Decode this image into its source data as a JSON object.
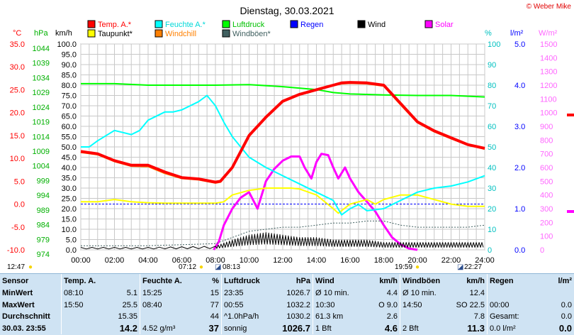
{
  "title": "Dienstag, 30.03.2021",
  "copyright": "© Weber Mike",
  "legend": [
    {
      "label": "Temp. A.*",
      "color": "#ff0000"
    },
    {
      "label": "Feuchte A.*",
      "color": "#00ffff"
    },
    {
      "label": "Luftdruck",
      "color": "#00ff00"
    },
    {
      "label": "Regen",
      "color": "#0000ff"
    },
    {
      "label": "Wind",
      "color": "#000000"
    },
    {
      "label": "Solar",
      "color": "#ff00ff"
    },
    {
      "label": "Taupunkt*",
      "color": "#ffff00"
    },
    {
      "label": "Windchill",
      "color": "#ff8000"
    },
    {
      "label": "Windböen*",
      "color": "#406060"
    }
  ],
  "axis_titles": {
    "temp": "°C",
    "pressure": "hPa",
    "wind": "km/h",
    "humidity": "%",
    "rain": "l/m²",
    "solar": "W/m²"
  },
  "chart_data": {
    "type": "line",
    "x_ticks": [
      "00:00",
      "02:00",
      "04:00",
      "06:00",
      "08:00",
      "10:00",
      "12:00",
      "14:00",
      "16:00",
      "18:00",
      "20:00",
      "22:00",
      "24:00"
    ],
    "temp_ticks": [
      "35.0",
      "30.0",
      "25.0",
      "20.0",
      "15.0",
      "10.0",
      "5.0",
      "0.0",
      "-5.0",
      "-10.0"
    ],
    "pressure_ticks": [
      "1044",
      "1039",
      "1034",
      "1029",
      "1024",
      "1019",
      "1014",
      "1009",
      "1004",
      "999",
      "994",
      "989",
      "984",
      "979",
      "974"
    ],
    "wind_ticks": [
      "100.0",
      "95.0",
      "90.0",
      "85.0",
      "80.0",
      "75.0",
      "70.0",
      "65.0",
      "60.0",
      "55.0",
      "50.0",
      "45.0",
      "40.0",
      "35.0",
      "30.0",
      "25.0",
      "20.0",
      "15.0",
      "10.0",
      "5.0",
      "0.0"
    ],
    "humidity_ticks": [
      "100",
      "90",
      "80",
      "70",
      "60",
      "50",
      "40",
      "30",
      "20",
      "10",
      "0"
    ],
    "rain_ticks": [
      "5.0",
      "4.0",
      "3.0",
      "2.0",
      "1.0",
      "0.0"
    ],
    "solar_ticks": [
      "1500",
      "1400",
      "1300",
      "1200",
      "1100",
      "1000",
      "900",
      "800",
      "700",
      "600",
      "500",
      "400",
      "300",
      "200",
      "100",
      "0"
    ],
    "temp_range": [
      -10,
      35
    ],
    "humidity_range": [
      0,
      100
    ],
    "pressure_range": [
      974,
      1044
    ],
    "wind_range": [
      0,
      100
    ],
    "solar_range": [
      0,
      1500
    ],
    "series": [
      {
        "name": "Temp. A.*",
        "axis": "temp",
        "color": "#ff0000",
        "x": [
          0,
          1,
          2,
          3,
          4,
          5,
          6,
          7,
          8,
          8.3,
          9,
          10,
          11,
          12,
          13,
          14,
          15,
          15.5,
          16,
          17,
          18,
          19,
          20,
          21,
          22,
          23,
          24
        ],
        "y": [
          11.5,
          11,
          9.5,
          8.5,
          8.5,
          7,
          5.8,
          5.5,
          4.8,
          5,
          8,
          15,
          19,
          22.5,
          24,
          25,
          26,
          26.5,
          26.6,
          26.5,
          26,
          22,
          18,
          16,
          14.5,
          13,
          12.2
        ]
      },
      {
        "name": "Windchill",
        "axis": "temp",
        "color": "#ff8000",
        "x": [
          0,
          1,
          2,
          3,
          4,
          5,
          6,
          7,
          8,
          8.3,
          9,
          10,
          11,
          12,
          13,
          14,
          15,
          15.5,
          16,
          17,
          18,
          19,
          20,
          21,
          22,
          23,
          24
        ],
        "y": [
          11.3,
          10.8,
          9.3,
          8.3,
          8.2,
          6.7,
          5.6,
          5.3,
          4.6,
          4.8,
          7.8,
          14.8,
          19,
          22.3,
          24,
          25,
          26,
          26.3,
          26.4,
          26.3,
          25.8,
          21.7,
          17.8,
          15.8,
          14.3,
          12.9,
          12
        ]
      },
      {
        "name": "Feuchte A.*",
        "axis": "humidity",
        "color": "#00ffff",
        "x": [
          0,
          0.5,
          1,
          2,
          2.5,
          3,
          3.5,
          4,
          5,
          5.5,
          6,
          6.5,
          7,
          7.5,
          8,
          8.5,
          9,
          10,
          11,
          12,
          13,
          14,
          15,
          15.5,
          16,
          16.5,
          17,
          18,
          18.5,
          19,
          20,
          21,
          22,
          23,
          24
        ],
        "y": [
          50,
          50,
          53,
          58,
          57,
          56,
          58,
          63,
          67,
          67,
          68,
          70,
          72,
          75,
          70,
          62,
          55,
          45,
          40,
          36,
          32,
          28,
          24,
          17,
          20,
          22,
          19,
          20,
          22,
          24,
          28,
          30,
          31,
          33,
          36
        ]
      },
      {
        "name": "Taupunkt*",
        "axis": "temp",
        "color": "#ffff00",
        "x": [
          0,
          1,
          2,
          3,
          4,
          5,
          6,
          7,
          8,
          8.5,
          9,
          10,
          11,
          12,
          12.5,
          13,
          14,
          15,
          15.3,
          16,
          17,
          17.5,
          18,
          19,
          20,
          21,
          22,
          23,
          24
        ],
        "y": [
          0.5,
          0.5,
          1,
          0.5,
          0.3,
          0.2,
          0.2,
          0.2,
          0.2,
          0.5,
          2,
          3,
          3.5,
          3.5,
          3.5,
          3.3,
          2,
          -1,
          -2,
          0,
          1,
          0,
          1,
          2,
          2,
          1,
          0,
          -0.5,
          -0.5
        ]
      },
      {
        "name": "Luftdruck",
        "axis": "pressure",
        "color": "#00ff00",
        "x": [
          0,
          2,
          4,
          6,
          8,
          10,
          12,
          14,
          15,
          16,
          18,
          20,
          22,
          24
        ],
        "y": [
          1030.5,
          1030.5,
          1030,
          1030,
          1030,
          1030.2,
          1029.5,
          1028.5,
          1027.5,
          1027,
          1026.7,
          1026.5,
          1026.5,
          1026
        ]
      },
      {
        "name": "Solar",
        "axis": "solar",
        "color": "#ff00ff",
        "x": [
          7.9,
          8.2,
          8.5,
          9,
          9.5,
          10,
          10.5,
          11,
          11.5,
          12,
          12.5,
          13,
          13.3,
          13.7,
          14,
          14.3,
          14.7,
          15,
          15.3,
          15.7,
          16,
          16.5,
          17,
          17.5,
          18,
          18.5,
          19,
          19.5,
          20
        ],
        "y": [
          0,
          60,
          180,
          300,
          380,
          420,
          300,
          500,
          590,
          650,
          680,
          680,
          600,
          520,
          640,
          700,
          690,
          600,
          520,
          600,
          520,
          420,
          350,
          280,
          180,
          90,
          40,
          10,
          0
        ]
      },
      {
        "name": "Wind",
        "axis": "wind",
        "color": "#000000",
        "style": "noise",
        "x": [
          0,
          4,
          8,
          9,
          10,
          11,
          12,
          13,
          14,
          15,
          16,
          17,
          18,
          19,
          20,
          21,
          22,
          23,
          24
        ],
        "y": [
          1,
          1,
          1.5,
          4,
          6,
          7,
          6,
          5,
          5,
          4,
          4,
          4,
          3,
          3,
          3,
          3,
          3,
          3,
          3
        ]
      },
      {
        "name": "Windböen*",
        "axis": "wind",
        "color": "#406060",
        "style": "dotted",
        "x": [
          0,
          4,
          8,
          9,
          10,
          11,
          12,
          13,
          14,
          15,
          16,
          17,
          18,
          19,
          20,
          21,
          22,
          23,
          24
        ],
        "y": [
          2,
          2,
          3,
          6,
          9,
          10,
          11,
          11,
          12,
          13,
          13,
          14,
          14,
          12,
          11,
          11,
          11,
          11,
          12
        ]
      }
    ]
  },
  "sun": {
    "left": "12:47",
    "sunrise": "07:12",
    "moonrise": "08:13",
    "sunset": "19:59",
    "moonset": "22:27"
  },
  "stats": {
    "header": [
      "Sensor",
      "Temp. A.",
      "Feuchte A.",
      "%",
      "Luftdruck",
      "hPa",
      "Wind",
      "km/h",
      "Windböen",
      "km/h",
      "Regen",
      "l/m²"
    ],
    "rows": [
      {
        "label": "MinWert",
        "c": [
          "08:10",
          "5.1",
          "15:25",
          "15",
          "23:35",
          "1026.7",
          "Ø 10 min.",
          "4.4",
          "Ø 10 min.",
          "12.4",
          "",
          ""
        ]
      },
      {
        "label": "MaxWert",
        "c": [
          "15:50",
          "25.5",
          "08:40",
          "77",
          "00:55",
          "1032.2",
          "10:30",
          "O 9.0",
          "14:50",
          "SO 22.5",
          "00:00",
          "0.0"
        ]
      },
      {
        "label": "Durchschnitt",
        "c": [
          "",
          "15.35",
          "",
          "44",
          "^1.0hPa/h",
          "1030.2",
          "61.3 km",
          "2.6",
          "",
          "7.8",
          "Gesamt:",
          "0.0"
        ]
      },
      {
        "label": "30.03. 23:55",
        "c": [
          "",
          "14.2",
          "4.52 g/m³",
          "37",
          "sonnig",
          "1026.7",
          "1 Bft",
          "4.6",
          "2 Bft",
          "11.3",
          "0.0 l/m²",
          "0.0"
        ]
      }
    ]
  }
}
